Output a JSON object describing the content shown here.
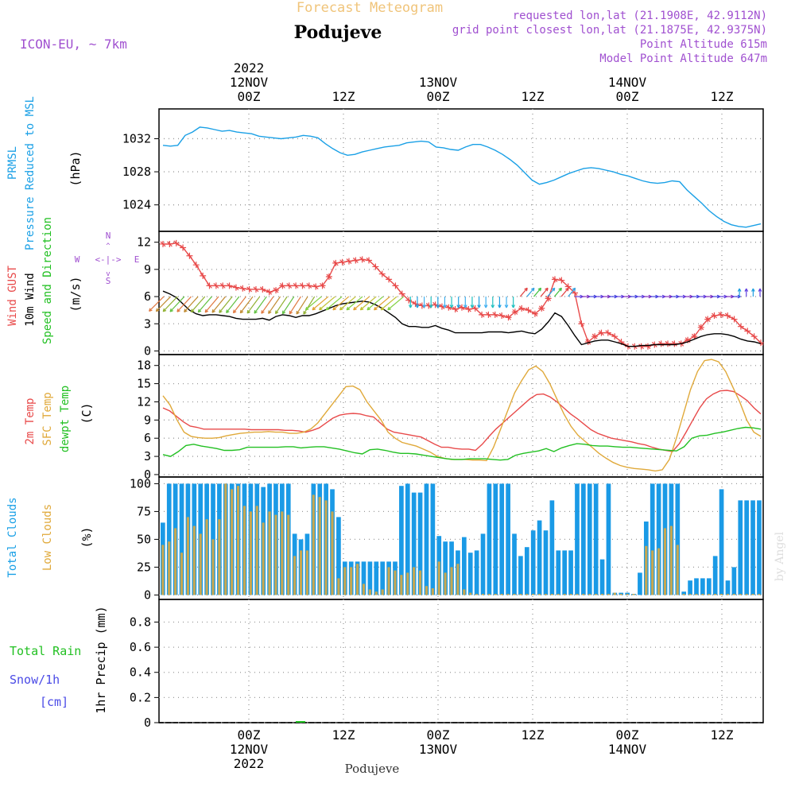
{
  "header": {
    "title": "Forecast Meteogram",
    "location": "Podujeve",
    "model": "ICON-EU, ~ 7km",
    "requested": "requested lon,lat (21.1908E, 42.9112N)",
    "grid_point": "grid point closest lon,lat (21.1875E, 42.9375N)",
    "point_altitude": "Point Altitude 615m",
    "model_altitude": "Model Point Altitude 647m",
    "footer_location": "Podujeve",
    "watermark": "by Angel",
    "compass": {
      "n": "N",
      "s": "S",
      "w": "W",
      "e": "E"
    }
  },
  "colors": {
    "pressure": "#1aa0e6",
    "gust": "#e84a4a",
    "wind": "#000000",
    "temp": "#e84a4a",
    "sfc": "#e0a93a",
    "dew": "#22c022",
    "total_clouds": "#1a9ae6",
    "low_clouds": "#c8a850",
    "rain": "#22c022",
    "snow": "#4a4ae6",
    "meta": "#a050d0"
  },
  "chart_data": [
    {
      "type": "line",
      "id": "pressure",
      "title": "PRMSL Pressure Reduced to MSL",
      "ylabel": "(hPa)",
      "ylabel_lines": [
        "PRMSL",
        "Pressure Reduced to MSL"
      ],
      "yticks": [
        1024,
        1028,
        1032
      ],
      "ylim": [
        1020.8,
        1035.6
      ],
      "series": [
        {
          "name": "PRMSL",
          "values": [
            1031.2,
            1031.1,
            1031.2,
            1032.4,
            1032.8,
            1033.4,
            1033.3,
            1033.1,
            1032.9,
            1033.0,
            1032.8,
            1032.7,
            1032.6,
            1032.3,
            1032.2,
            1032.1,
            1032.0,
            1032.1,
            1032.2,
            1032.4,
            1032.3,
            1032.1,
            1031.4,
            1030.8,
            1030.3,
            1030.0,
            1030.1,
            1030.4,
            1030.6,
            1030.8,
            1031.0,
            1031.1,
            1031.2,
            1031.5,
            1031.6,
            1031.7,
            1031.6,
            1031.0,
            1030.9,
            1030.7,
            1030.6,
            1031.0,
            1031.3,
            1031.3,
            1031.0,
            1030.6,
            1030.1,
            1029.5,
            1028.8,
            1027.9,
            1027.0,
            1026.5,
            1026.7,
            1027.0,
            1027.4,
            1027.8,
            1028.1,
            1028.4,
            1028.5,
            1028.4,
            1028.2,
            1028.0,
            1027.7,
            1027.5,
            1027.2,
            1026.9,
            1026.7,
            1026.6,
            1026.7,
            1026.9,
            1026.8,
            1025.8,
            1025.0,
            1024.2,
            1023.3,
            1022.6,
            1022.0,
            1021.6,
            1021.4,
            1021.3,
            1021.5,
            1021.7
          ]
        }
      ]
    },
    {
      "type": "line",
      "id": "wind",
      "title": "Wind GUST / 10m Wind Speed and Direction",
      "ylabel": "(m/s)",
      "ylabel_lines": [
        "Wind GUST",
        "10m Wind",
        "Speed and Direction"
      ],
      "yticks": [
        0,
        3,
        6,
        9,
        12
      ],
      "ylim": [
        -0.4,
        13.2
      ],
      "series": [
        {
          "name": "Wind GUST",
          "values": [
            11.8,
            11.8,
            11.9,
            11.4,
            10.5,
            9.5,
            8.3,
            7.2,
            7.2,
            7.2,
            7.2,
            7.0,
            6.9,
            6.8,
            6.8,
            6.8,
            6.5,
            6.7,
            7.2,
            7.2,
            7.2,
            7.2,
            7.2,
            7.1,
            7.2,
            8.2,
            9.7,
            9.8,
            9.9,
            10.0,
            10.1,
            10.0,
            9.3,
            8.5,
            7.9,
            7.2,
            6.3,
            5.6,
            5.2,
            5.0,
            5.0,
            5.1,
            4.9,
            4.8,
            4.6,
            4.8,
            4.6,
            4.7,
            4.0,
            4.0,
            4.0,
            3.9,
            3.7,
            4.3,
            4.7,
            4.5,
            4.1,
            4.7,
            5.8,
            7.9,
            7.8,
            7.1,
            6.4,
            3.0,
            1.0,
            1.6,
            2.0,
            2.0,
            1.6,
            1.0,
            0.5,
            0.5,
            0.5,
            0.5,
            0.7,
            0.8,
            0.8,
            0.8,
            0.8,
            1.2,
            1.6,
            2.6,
            3.5,
            3.9,
            4.0,
            3.9,
            3.5,
            2.7,
            2.2,
            1.6,
            0.9
          ]
        },
        {
          "name": "10m Wind",
          "values": [
            6.6,
            6.3,
            5.9,
            5.2,
            4.5,
            4.1,
            3.9,
            4.0,
            4.0,
            3.9,
            3.8,
            3.6,
            3.5,
            3.5,
            3.5,
            3.6,
            3.4,
            3.8,
            4.0,
            3.9,
            3.7,
            3.9,
            3.9,
            4.1,
            4.4,
            4.7,
            5.0,
            5.2,
            5.3,
            5.4,
            5.5,
            5.4,
            5.1,
            4.7,
            4.2,
            3.7,
            3.0,
            2.7,
            2.7,
            2.6,
            2.6,
            2.8,
            2.5,
            2.3,
            2.0,
            2.0,
            2.0,
            2.0,
            2.0,
            2.1,
            2.1,
            2.1,
            2.0,
            2.1,
            2.2,
            2.0,
            1.9,
            2.4,
            3.2,
            4.2,
            3.8,
            2.8,
            1.7,
            0.7,
            0.9,
            1.1,
            1.2,
            1.2,
            1.0,
            0.8,
            0.5,
            0.5,
            0.6,
            0.6,
            0.7,
            0.7,
            0.7,
            0.7,
            0.8,
            1.0,
            1.3,
            1.6,
            1.8,
            1.9,
            1.9,
            1.8,
            1.6,
            1.3,
            1.1,
            1.0,
            0.8
          ]
        }
      ],
      "barbs": "arrow direction glyphs along 6 m/s line (SW/W winds first day, N/NE mid, E/SE last day)"
    },
    {
      "type": "line",
      "id": "temperature",
      "title": "2m Temp / SFC Temp / dewpt Temp",
      "ylabel": "(C)",
      "ylabel_lines": [
        "2m Temp",
        "SFC Temp",
        "dewpt Temp"
      ],
      "yticks": [
        0,
        3,
        6,
        9,
        12,
        15,
        18
      ],
      "ylim": [
        -0.4,
        19.8
      ],
      "series": [
        {
          "name": "2m Temp",
          "values": [
            11.0,
            10.5,
            9.6,
            8.7,
            8.0,
            7.8,
            7.5,
            7.5,
            7.5,
            7.5,
            7.5,
            7.5,
            7.5,
            7.4,
            7.4,
            7.4,
            7.4,
            7.4,
            7.3,
            7.3,
            7.2,
            7.0,
            7.3,
            7.7,
            8.5,
            9.3,
            9.8,
            10.0,
            10.1,
            10.0,
            9.7,
            9.5,
            8.5,
            7.5,
            7.0,
            6.8,
            6.6,
            6.4,
            6.2,
            5.6,
            5.0,
            4.5,
            4.5,
            4.3,
            4.2,
            4.2,
            4.0,
            5.0,
            6.3,
            7.5,
            8.5,
            9.5,
            10.5,
            11.5,
            12.5,
            13.2,
            13.3,
            12.8,
            12.0,
            11.0,
            10.0,
            9.2,
            8.3,
            7.4,
            6.8,
            6.4,
            6.0,
            5.8,
            5.6,
            5.4,
            5.1,
            4.9,
            4.5,
            4.2,
            4.0,
            3.8,
            5.1,
            7.0,
            9.0,
            11.0,
            12.5,
            13.3,
            13.8,
            13.9,
            13.7,
            13.0,
            12.2,
            11.0,
            10.0
          ],
          "xstart": 0,
          "xstep": 1
        },
        {
          "name": "SFC Temp",
          "values": [
            13.0,
            11.5,
            9.0,
            7.0,
            6.3,
            6.1,
            6.0,
            6.0,
            6.1,
            6.4,
            6.6,
            6.8,
            6.9,
            7.0,
            7.0,
            7.1,
            7.0,
            7.0,
            6.8,
            6.8,
            7.0,
            7.5,
            8.5,
            10.0,
            11.5,
            13.0,
            14.5,
            14.6,
            14.0,
            12.0,
            10.5,
            9.0,
            7.0,
            6.0,
            5.3,
            5.0,
            4.7,
            4.2,
            3.7,
            3.0,
            2.7,
            2.5,
            2.5,
            2.5,
            2.4,
            2.4,
            2.3,
            4.5,
            7.5,
            10.5,
            13.5,
            15.5,
            17.3,
            17.9,
            17.0,
            15.0,
            12.5,
            10.0,
            8.0,
            6.5,
            5.5,
            4.5,
            3.5,
            2.7,
            2.0,
            1.5,
            1.2,
            1.0,
            0.9,
            0.8,
            0.6,
            0.8,
            2.5,
            6.0,
            10.0,
            14.0,
            17.0,
            18.8,
            19.0,
            18.6,
            17.0,
            14.5,
            12.0,
            9.0,
            7.0,
            6.3
          ],
          "xstart": 0,
          "xstep": 1
        },
        {
          "name": "dewpt Temp",
          "values": [
            3.3,
            3.0,
            3.8,
            4.8,
            5.0,
            4.7,
            4.5,
            4.3,
            4.0,
            4.0,
            4.1,
            4.5,
            4.5,
            4.5,
            4.5,
            4.5,
            4.6,
            4.6,
            4.4,
            4.5,
            4.6,
            4.6,
            4.4,
            4.2,
            3.9,
            3.6,
            3.4,
            4.1,
            4.2,
            4.0,
            3.7,
            3.5,
            3.5,
            3.4,
            3.2,
            3.0,
            2.8,
            2.6,
            2.5,
            2.5,
            2.6,
            2.6,
            2.6,
            2.5,
            2.4,
            2.5,
            3.2,
            3.5,
            3.7,
            3.9,
            4.3,
            3.8,
            4.4,
            4.8,
            5.1,
            5.0,
            4.8,
            4.7,
            4.7,
            4.6,
            4.5,
            4.5,
            4.4,
            4.3,
            4.2,
            4.1,
            4.0,
            3.9,
            4.6,
            6.0,
            6.4,
            6.5,
            6.8,
            7.0,
            7.3,
            7.6,
            7.8,
            7.7,
            7.5
          ],
          "xstart": 0,
          "xstep": 1
        }
      ]
    },
    {
      "type": "bar",
      "id": "clouds",
      "title": "Total Clouds / Low Clouds",
      "ylabel": "(%)",
      "ylabel_lines": [
        "Total Clouds",
        "Low Clouds"
      ],
      "yticks": [
        0,
        25,
        50,
        75,
        100
      ],
      "ylim": [
        -4,
        106
      ],
      "series": [
        {
          "name": "Total Clouds",
          "values": [
            65,
            100,
            100,
            100,
            100,
            100,
            100,
            100,
            100,
            100,
            100,
            100,
            100,
            100,
            100,
            100,
            97,
            100,
            100,
            100,
            100,
            55,
            50,
            55,
            100,
            100,
            100,
            95,
            70,
            30,
            30,
            30,
            30,
            30,
            30,
            30,
            30,
            30,
            98,
            100,
            92,
            92,
            100,
            100,
            53,
            48,
            48,
            40,
            52,
            38,
            40,
            55,
            100,
            100,
            100,
            100,
            55,
            35,
            43,
            58,
            67,
            58,
            85,
            40,
            40,
            40,
            100,
            100,
            100,
            100,
            32,
            100,
            2,
            2,
            2,
            1,
            20,
            66,
            100,
            100,
            100,
            100,
            100,
            3,
            13,
            15,
            15,
            15,
            35,
            95,
            13,
            25,
            85,
            85,
            85,
            85
          ]
        },
        {
          "name": "Low Clouds",
          "values": [
            45,
            48,
            60,
            38,
            70,
            62,
            55,
            68,
            50,
            68,
            100,
            95,
            98,
            80,
            75,
            80,
            65,
            75,
            72,
            75,
            72,
            35,
            40,
            40,
            90,
            88,
            85,
            75,
            15,
            25,
            25,
            28,
            10,
            5,
            3,
            5,
            25,
            22,
            18,
            20,
            25,
            22,
            8,
            6,
            30,
            20,
            25,
            28,
            5,
            2,
            1,
            1,
            1,
            1,
            1,
            1,
            1,
            1,
            1,
            1,
            1,
            1,
            1,
            1,
            1,
            1,
            1,
            1,
            1,
            1,
            1,
            1,
            2,
            1,
            1,
            1,
            0,
            44,
            40,
            42,
            60,
            62,
            45,
            1,
            1,
            1,
            1,
            1,
            1,
            1,
            1,
            1,
            1,
            1,
            1,
            1
          ]
        }
      ]
    },
    {
      "type": "line",
      "id": "precip",
      "title": "Total Rain / Snow/1h [cm]",
      "ylabel": "1hr Precip (mm)",
      "ylabel_lines": [
        "Total Rain",
        "Snow/1h",
        "[cm]"
      ],
      "yticks": [
        0,
        0.2,
        0.4,
        0.6,
        0.8
      ],
      "ytick_labels": [
        "0",
        "0.2",
        "0.4",
        "0.6",
        "0.8"
      ],
      "ylim": [
        0,
        0.98
      ],
      "series": [
        {
          "name": "Total Rain",
          "values": [
            0.0
          ]
        }
      ]
    }
  ],
  "time_axis": {
    "top_labels": [
      {
        "line1": "2022",
        "line2": "12NOV",
        "line3": "00Z"
      },
      {
        "line1": "",
        "line2": "",
        "line3": "12Z"
      },
      {
        "line1": "",
        "line2": "13NOV",
        "line3": "00Z"
      },
      {
        "line1": "",
        "line2": "",
        "line3": "12Z"
      },
      {
        "line1": "",
        "line2": "14NOV",
        "line3": "00Z"
      },
      {
        "line1": "",
        "line2": "",
        "line3": "12Z"
      }
    ],
    "bottom_labels": [
      {
        "line1": "00Z",
        "line2": "12NOV",
        "line3": "2022"
      },
      {
        "line1": "12Z",
        "line2": "",
        "line3": ""
      },
      {
        "line1": "00Z",
        "line2": "13NOV",
        "line3": ""
      },
      {
        "line1": "12Z",
        "line2": "",
        "line3": ""
      },
      {
        "line1": "00Z",
        "line2": "14NOV",
        "line3": ""
      },
      {
        "line1": "12Z",
        "line2": "",
        "line3": ""
      }
    ]
  }
}
